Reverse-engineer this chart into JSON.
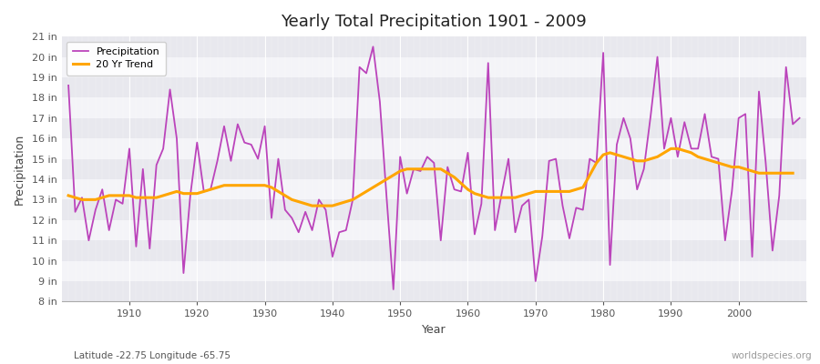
{
  "title": "Yearly Total Precipitation 1901 - 2009",
  "xlabel": "Year",
  "ylabel": "Precipitation",
  "subtitle": "Latitude -22.75 Longitude -65.75",
  "watermark": "worldspecies.org",
  "precip_color": "#bb44bb",
  "trend_color": "#FFA500",
  "bg_color": "#f0f0f5",
  "plot_bg_light": "#f0f0f5",
  "plot_bg_dark": "#e0e0e8",
  "ylim": [
    8,
    21
  ],
  "yticks": [
    8,
    9,
    10,
    11,
    12,
    13,
    14,
    15,
    16,
    17,
    18,
    19,
    20,
    21
  ],
  "years": [
    1901,
    1902,
    1903,
    1904,
    1905,
    1906,
    1907,
    1908,
    1909,
    1910,
    1911,
    1912,
    1913,
    1914,
    1915,
    1916,
    1917,
    1918,
    1919,
    1920,
    1921,
    1922,
    1923,
    1924,
    1925,
    1926,
    1927,
    1928,
    1929,
    1930,
    1931,
    1932,
    1933,
    1934,
    1935,
    1936,
    1937,
    1938,
    1939,
    1940,
    1941,
    1942,
    1943,
    1944,
    1945,
    1946,
    1947,
    1948,
    1949,
    1950,
    1951,
    1952,
    1953,
    1954,
    1955,
    1956,
    1957,
    1958,
    1959,
    1960,
    1961,
    1962,
    1963,
    1964,
    1965,
    1966,
    1967,
    1968,
    1969,
    1970,
    1971,
    1972,
    1973,
    1974,
    1975,
    1976,
    1977,
    1978,
    1979,
    1980,
    1981,
    1982,
    1983,
    1984,
    1985,
    1986,
    1987,
    1988,
    1989,
    1990,
    1991,
    1992,
    1993,
    1994,
    1995,
    1996,
    1997,
    1998,
    1999,
    2000,
    2001,
    2002,
    2003,
    2004,
    2005,
    2006,
    2007,
    2008,
    2009
  ],
  "precip": [
    18.6,
    12.4,
    13.1,
    11.0,
    12.5,
    13.5,
    11.5,
    13.0,
    12.8,
    15.5,
    10.7,
    14.5,
    10.6,
    14.7,
    15.5,
    18.4,
    16.0,
    9.4,
    13.2,
    15.8,
    13.4,
    13.5,
    14.9,
    16.6,
    14.9,
    16.7,
    15.8,
    15.7,
    15.0,
    16.6,
    12.1,
    15.0,
    12.5,
    12.1,
    11.4,
    12.4,
    11.5,
    13.0,
    12.5,
    10.2,
    11.4,
    11.5,
    13.0,
    19.5,
    19.2,
    20.5,
    17.8,
    13.1,
    8.6,
    15.1,
    13.3,
    14.5,
    14.4,
    15.1,
    14.8,
    11.0,
    14.6,
    13.5,
    13.4,
    15.3,
    11.3,
    12.8,
    19.7,
    11.5,
    13.3,
    15.0,
    11.4,
    12.7,
    13.0,
    9.0,
    11.2,
    14.9,
    15.0,
    12.7,
    11.1,
    12.6,
    12.5,
    15.0,
    14.8,
    20.2,
    9.8,
    15.7,
    17.0,
    16.0,
    13.5,
    14.5,
    17.1,
    20.0,
    15.5,
    17.0,
    15.1,
    16.8,
    15.5,
    15.5,
    17.2,
    15.1,
    15.0,
    11.0,
    13.4,
    17.0,
    17.2,
    10.2,
    18.3,
    14.8,
    10.5,
    13.2,
    19.5,
    16.7,
    17.0
  ],
  "trend": [
    13.2,
    13.1,
    13.0,
    13.0,
    13.0,
    13.1,
    13.2,
    13.2,
    13.2,
    13.2,
    13.1,
    13.1,
    13.1,
    13.1,
    13.2,
    13.3,
    13.4,
    13.3,
    13.3,
    13.3,
    13.4,
    13.5,
    13.6,
    13.7,
    13.7,
    13.7,
    13.7,
    13.7,
    13.7,
    13.7,
    13.6,
    13.4,
    13.2,
    13.0,
    12.9,
    12.8,
    12.7,
    12.7,
    12.7,
    12.7,
    12.8,
    12.9,
    13.0,
    13.2,
    13.4,
    13.6,
    13.8,
    14.0,
    14.2,
    14.4,
    14.5,
    14.5,
    14.5,
    14.5,
    14.5,
    14.5,
    14.3,
    14.1,
    13.8,
    13.5,
    13.3,
    13.2,
    13.1,
    13.1,
    13.1,
    13.1,
    13.1,
    13.2,
    13.3,
    13.4,
    13.4,
    13.4,
    13.4,
    13.4,
    13.4,
    13.5,
    13.6,
    14.2,
    14.8,
    15.2,
    15.3,
    15.2,
    15.1,
    15.0,
    14.9,
    14.9,
    15.0,
    15.1,
    15.3,
    15.5,
    15.5,
    15.4,
    15.3,
    15.1,
    15.0,
    14.9,
    14.8,
    14.7,
    14.6,
    14.6,
    14.5,
    14.4,
    14.3,
    14.3,
    14.3,
    14.3,
    14.3,
    14.3,
    null
  ]
}
